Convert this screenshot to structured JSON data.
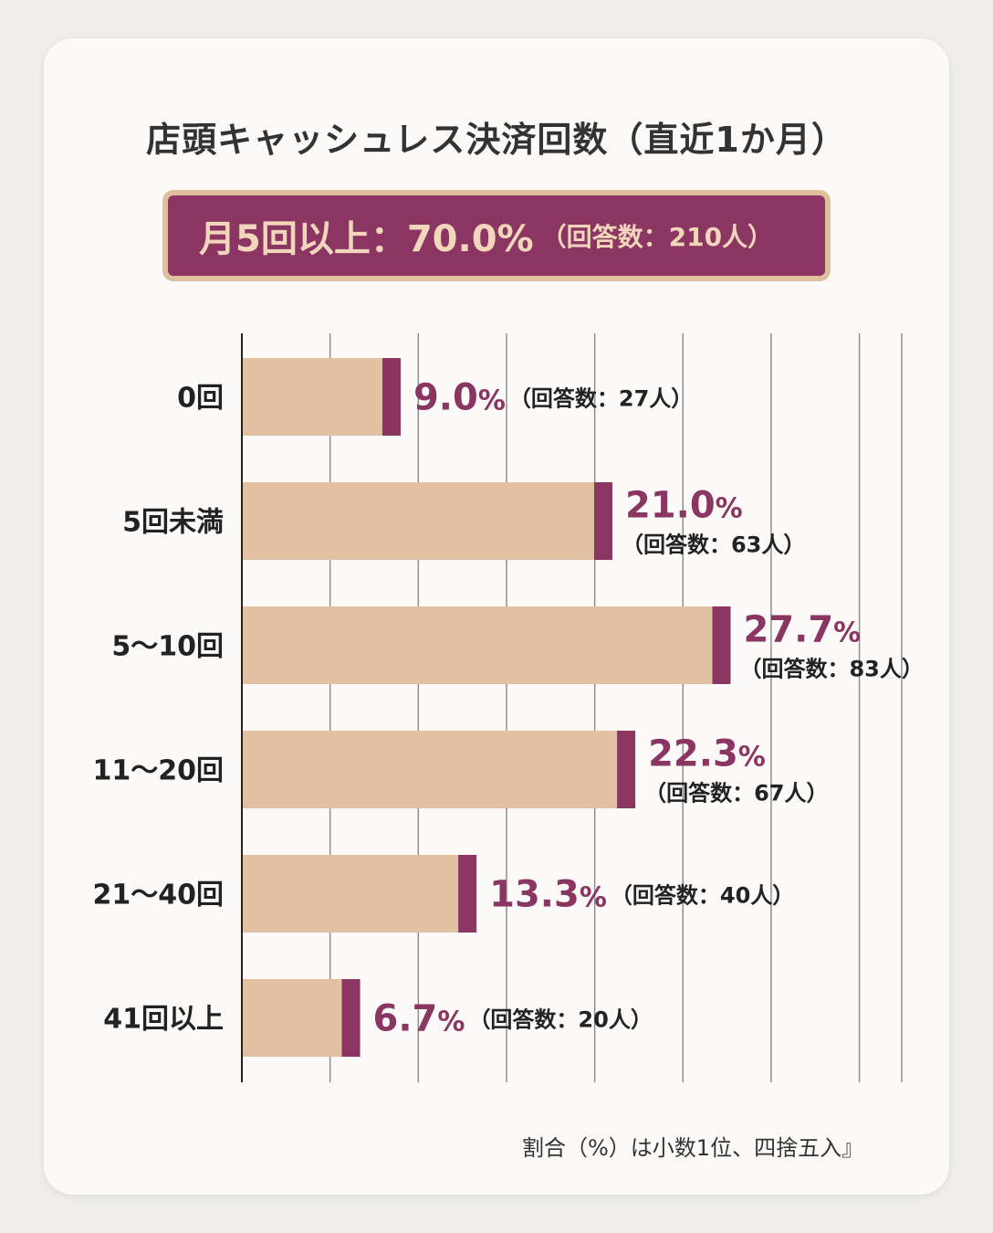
{
  "chart_data": {
    "type": "bar",
    "orientation": "horizontal",
    "title": "店頭キャッシュレス決済回数（直近1か月）",
    "summary": {
      "text": "月5回以上：70.0%",
      "count_text": "（回答数：210人）"
    },
    "categories": [
      "0回",
      "5回未満",
      "5〜10回",
      "11〜20回",
      "21〜40回",
      "41回以上"
    ],
    "values": [
      9.0,
      21.0,
      27.7,
      22.3,
      13.3,
      6.7
    ],
    "value_labels": [
      "9.0",
      "21.0",
      "27.7",
      "22.3",
      "13.3",
      "6.7"
    ],
    "unit": "%",
    "counts": [
      "（回答数：27人）",
      "（回答数：63人）",
      "（回答数：83人）",
      "（回答数：67人）",
      "（回答数：40人）",
      "（回答数：20人）"
    ],
    "xlim": [
      0,
      37.4
    ],
    "grid": true,
    "grid_step": 5,
    "xlabel": "",
    "ylabel": "",
    "footnote": "割合（%）は小数1位、四捨五入』",
    "colors": {
      "bar": "#e2c0a2",
      "bar_end": "#8a3562",
      "value_text": "#8a3562",
      "summary_bg": "#8a3562",
      "summary_border": "#e0bf9f",
      "summary_text": "#f2d6bb"
    }
  }
}
